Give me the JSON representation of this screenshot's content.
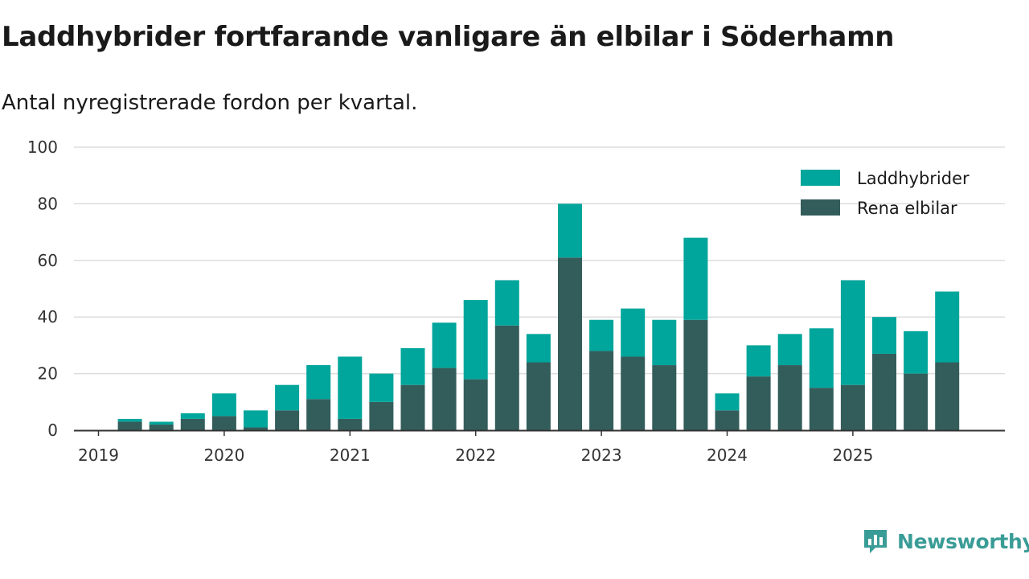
{
  "title": "Laddhybrider fortfarande vanligare än elbilar i Söderhamn",
  "subtitle": "Antal nyregistrerade fordon per kvartal.",
  "brand": {
    "name": "Newsworthy",
    "icon": "newsworthy-logo-icon"
  },
  "colors": {
    "laddhybrider": "#00a59b",
    "rena_elbilar": "#335d5b",
    "grid": "#dddddd",
    "axis": "#333333",
    "brand": "#3a9c96"
  },
  "chart_data": {
    "type": "bar",
    "stacked": true,
    "title": "Laddhybrider fortfarande vanligare än elbilar i Söderhamn",
    "subtitle": "Antal nyregistrerade fordon per kvartal.",
    "xlabel": "",
    "ylabel": "",
    "ylim": [
      0,
      100
    ],
    "yticks": [
      0,
      20,
      40,
      60,
      80,
      100
    ],
    "xtick_labels": [
      "2019",
      "2020",
      "2021",
      "2022",
      "2023",
      "2024",
      "2025"
    ],
    "legend_position": "top-right",
    "categories": [
      "2019 Q1",
      "2019 Q2",
      "2019 Q3",
      "2019 Q4",
      "2020 Q1",
      "2020 Q2",
      "2020 Q3",
      "2020 Q4",
      "2021 Q1",
      "2021 Q2",
      "2021 Q3",
      "2021 Q4",
      "2022 Q1",
      "2022 Q2",
      "2022 Q3",
      "2022 Q4",
      "2023 Q1",
      "2023 Q2",
      "2023 Q3",
      "2023 Q4",
      "2024 Q1",
      "2024 Q2",
      "2024 Q3",
      "2024 Q4",
      "2025 Q1",
      "2025 Q2",
      "2025 Q3",
      "2025 Q4"
    ],
    "series": [
      {
        "name": "Rena elbilar",
        "color": "#335d5b",
        "values": [
          0,
          3,
          2,
          4,
          5,
          1,
          7,
          11,
          4,
          10,
          16,
          22,
          18,
          37,
          24,
          61,
          28,
          26,
          23,
          39,
          7,
          19,
          23,
          15,
          16,
          27,
          20,
          24
        ]
      },
      {
        "name": "Laddhybrider",
        "color": "#00a59b",
        "values": [
          0,
          1,
          1,
          2,
          8,
          6,
          9,
          12,
          22,
          10,
          13,
          16,
          28,
          16,
          10,
          19,
          11,
          17,
          16,
          29,
          6,
          11,
          11,
          21,
          37,
          13,
          15,
          25
        ]
      }
    ],
    "legend": [
      "Laddhybrider",
      "Rena elbilar"
    ]
  }
}
